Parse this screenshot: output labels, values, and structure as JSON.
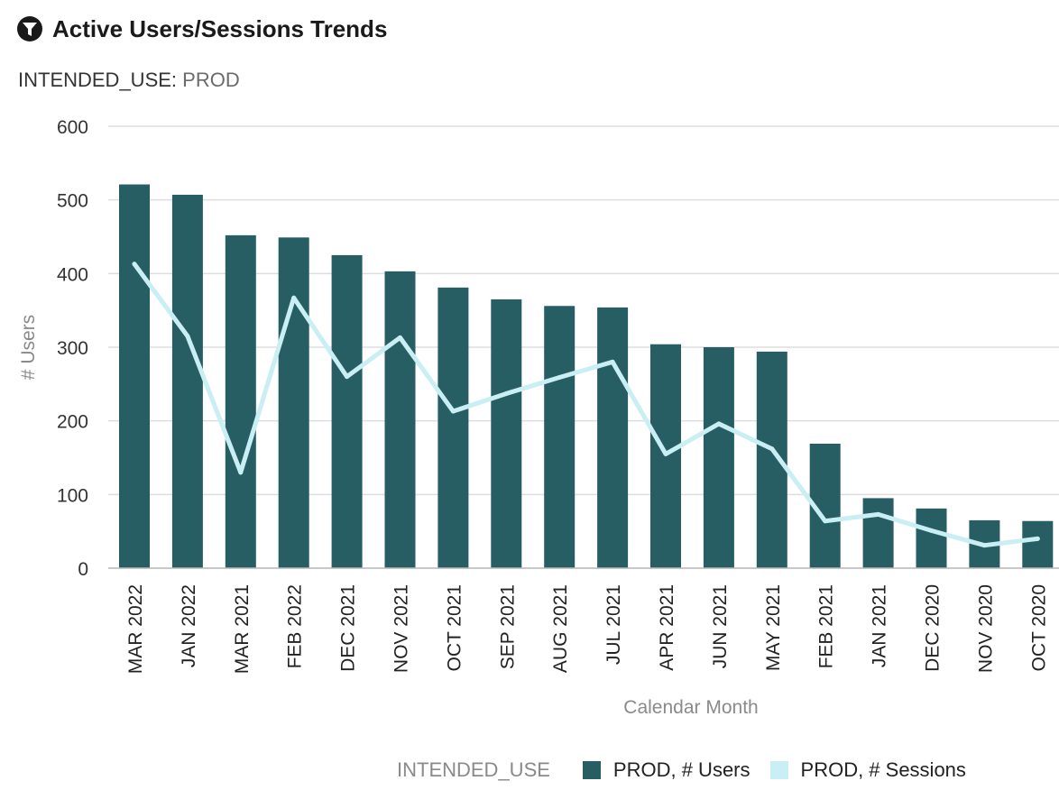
{
  "header": {
    "title": "Active Users/Sessions Trends",
    "icon": "filter-icon"
  },
  "filter": {
    "key": "INTENDED_USE:",
    "value": "PROD"
  },
  "legend": {
    "title": "INTENDED_USE",
    "items": [
      "PROD, # Users",
      "PROD, # Sessions"
    ]
  },
  "colors": {
    "users_bar": "#275e64",
    "sessions_line": "#c9eef3",
    "grid": "#dddddd",
    "axis_text": "#333333",
    "label_text": "#8a8a8a"
  },
  "chart_data": {
    "type": "bar",
    "title": "",
    "xlabel": "Calendar Month",
    "ylabel": "# Users",
    "ylim": [
      0,
      600
    ],
    "yticks": [
      0,
      100,
      200,
      300,
      400,
      500,
      600
    ],
    "grid": true,
    "legend_position": "bottom",
    "categories": [
      "MAR 2022",
      "JAN 2022",
      "MAR 2021",
      "FEB 2022",
      "DEC 2021",
      "NOV 2021",
      "OCT 2021",
      "SEP 2021",
      "AUG 2021",
      "JUL 2021",
      "APR 2021",
      "JUN 2021",
      "MAY 2021",
      "FEB 2021",
      "JAN 2021",
      "DEC 2020",
      "NOV 2020",
      "OCT 2020"
    ],
    "series": [
      {
        "name": "PROD, # Users",
        "type": "bar",
        "values": [
          521,
          507,
          452,
          449,
          425,
          403,
          381,
          365,
          356,
          354,
          304,
          300,
          294,
          169,
          95,
          81,
          65,
          64
        ]
      },
      {
        "name": "PROD, # Sessions",
        "type": "line",
        "values": [
          413,
          315,
          130,
          367,
          260,
          313,
          213,
          237,
          259,
          280,
          155,
          196,
          162,
          64,
          73,
          51,
          31,
          40
        ]
      }
    ]
  }
}
